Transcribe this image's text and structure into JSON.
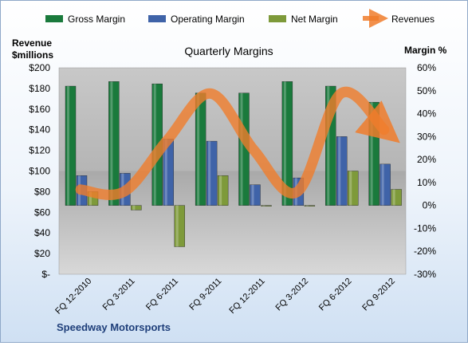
{
  "chart_data": {
    "type": "bar",
    "title": "Quarterly Margins",
    "company": "Speedway Motorsports",
    "left_axis": {
      "label_line1": "Revenue",
      "label_line2": "$millions",
      "min": 0,
      "max": 200,
      "step": 20,
      "tick_labels": [
        "$-",
        "$20",
        "$40",
        "$60",
        "$80",
        "$100",
        "$120",
        "$140",
        "$160",
        "$180",
        "$200"
      ]
    },
    "right_axis": {
      "label": "Margin %",
      "min": -30,
      "max": 60,
      "step": 10,
      "tick_labels": [
        "-30%",
        "-20%",
        "-10%",
        "0%",
        "10%",
        "20%",
        "30%",
        "40%",
        "50%",
        "60%"
      ]
    },
    "categories": [
      "FQ 12-2010",
      "FQ 3-2011",
      "FQ 6-2011",
      "FQ 9-2011",
      "FQ 12-2011",
      "FQ 3-2012",
      "FQ 6-2012",
      "FQ 9-2012"
    ],
    "series": [
      {
        "name": "Gross Margin",
        "type": "bar",
        "axis": "right",
        "color": "#1a7a3c",
        "values": [
          52,
          54,
          53,
          49,
          49,
          54,
          52,
          45
        ]
      },
      {
        "name": "Operating Margin",
        "type": "bar",
        "axis": "right",
        "color": "#3f63a8",
        "values": [
          13,
          14,
          29,
          28,
          9,
          12,
          30,
          18
        ]
      },
      {
        "name": "Net Margin",
        "type": "bar",
        "axis": "right",
        "color": "#7e9a3a",
        "values": [
          6,
          -2,
          -18,
          13,
          0,
          0,
          15,
          7
        ]
      },
      {
        "name": "Revenues",
        "type": "line",
        "axis": "left",
        "color": "#f07d2c",
        "values": [
          82,
          80,
          130,
          175,
          120,
          80,
          175,
          140
        ]
      }
    ],
    "legend_position": "top",
    "grid": false
  }
}
